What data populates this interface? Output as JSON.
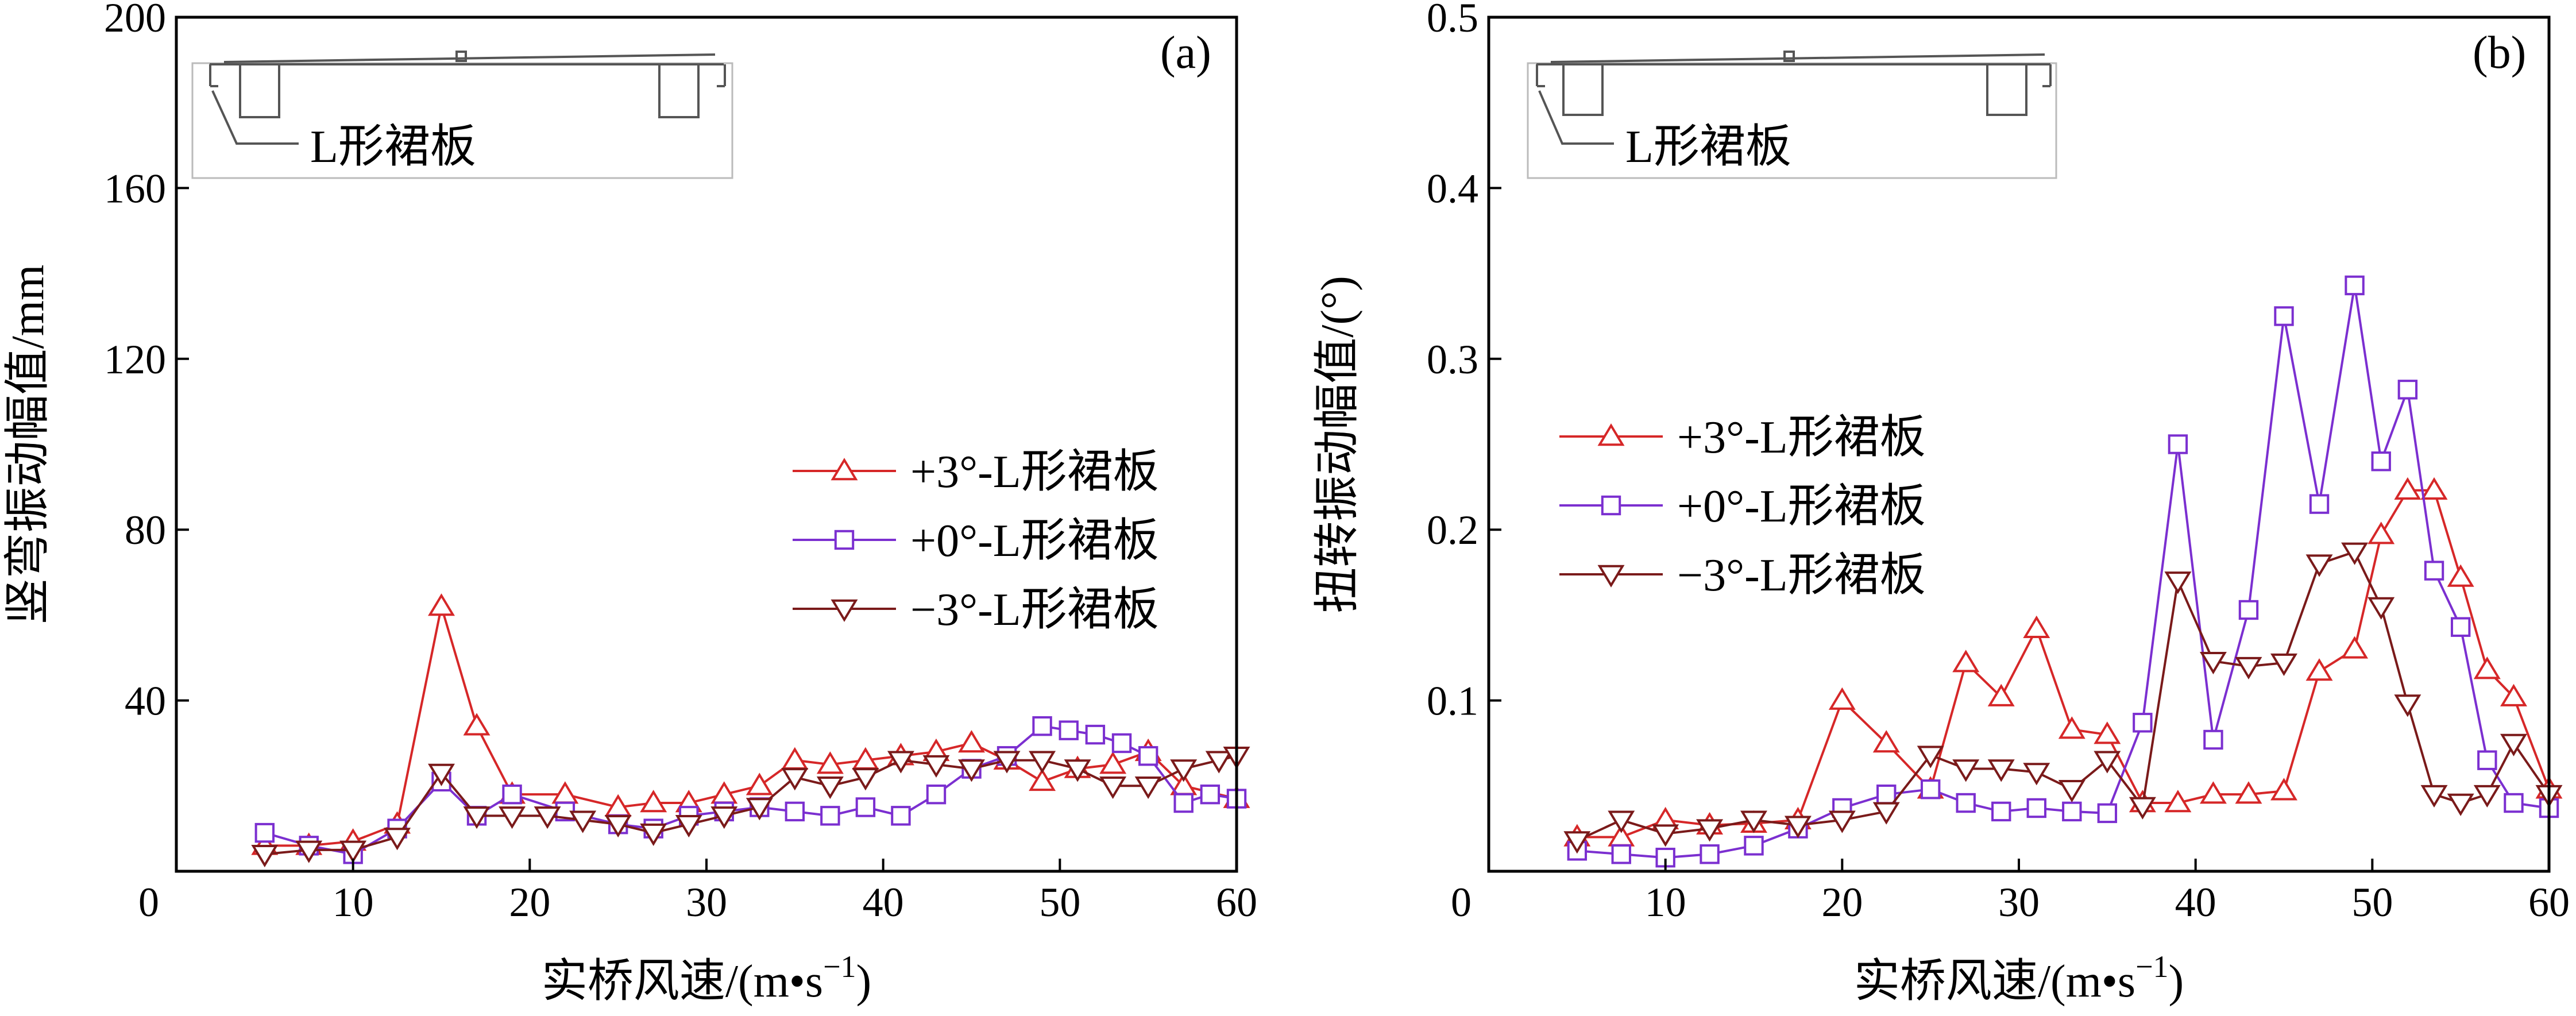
{
  "chart_data": [
    {
      "type": "line",
      "panel_label": "(a)",
      "xlabel": "实桥风速/(m•s",
      "xlabel_sup": "−1",
      "xlabel_close": ")",
      "ylabel": "竖弯振动幅值/mm",
      "xlim": [
        0,
        60
      ],
      "ylim": [
        0,
        200
      ],
      "xticks": [
        "0",
        "10",
        "20",
        "30",
        "40",
        "50",
        "60"
      ],
      "yticks": [
        "0",
        "40",
        "80",
        "120",
        "160",
        "200"
      ],
      "inset_label": "L形裙板",
      "legend_position": "right",
      "series": [
        {
          "name": "+3°-L形裙板",
          "color": "#d62728",
          "marker": "triangle-up",
          "x": [
            5,
            7.5,
            10,
            12.5,
            15,
            17,
            19,
            22,
            25,
            27,
            29,
            31,
            33,
            35,
            37,
            39,
            41,
            43,
            45,
            47,
            49,
            51,
            53,
            55,
            57,
            60
          ],
          "y": [
            6,
            6,
            7,
            11,
            62,
            34,
            18,
            18,
            15,
            16,
            16,
            18,
            20,
            26,
            25,
            26,
            27,
            28,
            30,
            26,
            21,
            24,
            25,
            28,
            20,
            17
          ]
        },
        {
          "name": "+0°-L形裙板",
          "color": "#7b2fd0",
          "marker": "square",
          "x": [
            5,
            7.5,
            10,
            12.5,
            15,
            17,
            19,
            22,
            25,
            27,
            29,
            31,
            33,
            35,
            37,
            39,
            41,
            43,
            45,
            47,
            49,
            50.5,
            52,
            53.5,
            55,
            57,
            58.5,
            60
          ],
          "y": [
            9,
            6,
            4,
            10,
            21,
            13,
            18,
            14,
            11,
            10,
            13,
            14,
            15,
            14,
            13,
            15,
            13,
            18,
            24,
            27,
            34,
            33,
            32,
            30,
            27,
            16,
            18,
            17
          ]
        },
        {
          "name": "−3°-L形裙板",
          "color": "#7a1a1a",
          "marker": "triangle-down",
          "x": [
            5,
            7.5,
            10,
            12.5,
            15,
            17,
            19,
            21,
            23,
            25,
            27,
            29,
            31,
            33,
            35,
            37,
            39,
            41,
            43,
            45,
            47,
            49,
            51,
            53,
            55,
            57,
            59,
            60
          ],
          "y": [
            4,
            5,
            5,
            8,
            23,
            13,
            13,
            13,
            12,
            11,
            9,
            11,
            13,
            15,
            22,
            20,
            22,
            26,
            25,
            24,
            26,
            26,
            24,
            20,
            20,
            24,
            26,
            27
          ]
        }
      ]
    },
    {
      "type": "line",
      "panel_label": "(b)",
      "xlabel": "实桥风速/(m•s",
      "xlabel_sup": "−1",
      "xlabel_close": ")",
      "ylabel": "扭转振动幅值/(°)",
      "xlim": [
        0,
        60
      ],
      "ylim": [
        0,
        0.5
      ],
      "xticks": [
        "0",
        "10",
        "20",
        "30",
        "40",
        "50",
        "60"
      ],
      "yticks": [
        "0",
        "0.1",
        "0.2",
        "0.3",
        "0.4",
        "0.5"
      ],
      "inset_label": "L形裙板",
      "legend_position": "left",
      "series": [
        {
          "name": "+3°-L形裙板",
          "color": "#d62728",
          "marker": "triangle-up",
          "x": [
            5,
            7.5,
            10,
            12.5,
            15,
            17.5,
            20,
            22.5,
            25,
            27,
            29,
            31,
            33,
            35,
            37,
            39,
            41,
            43,
            45,
            47,
            49,
            50.5,
            52,
            53.5,
            55,
            56.5,
            58,
            60
          ],
          "y": [
            0.02,
            0.02,
            0.03,
            0.027,
            0.028,
            0.03,
            0.1,
            0.075,
            0.048,
            0.122,
            0.102,
            0.142,
            0.083,
            0.08,
            0.04,
            0.04,
            0.045,
            0.045,
            0.047,
            0.117,
            0.13,
            0.197,
            0.223,
            0.223,
            0.172,
            0.118,
            0.102,
            0.048
          ]
        },
        {
          "name": "+0°-L形裙板",
          "color": "#7b2fd0",
          "marker": "square",
          "x": [
            5,
            7.5,
            10,
            12.5,
            15,
            17.5,
            20,
            22.5,
            25,
            27,
            29,
            31,
            33,
            35,
            37,
            39,
            41,
            43,
            45,
            47,
            49,
            50.5,
            52,
            53.5,
            55,
            56.5,
            58,
            60
          ],
          "y": [
            0.012,
            0.01,
            0.008,
            0.01,
            0.015,
            0.025,
            0.037,
            0.045,
            0.048,
            0.04,
            0.035,
            0.037,
            0.035,
            0.034,
            0.087,
            0.25,
            0.077,
            0.153,
            0.325,
            0.215,
            0.343,
            0.24,
            0.282,
            0.176,
            0.143,
            0.065,
            0.04,
            0.037
          ]
        },
        {
          "name": "−3°-L形裙板",
          "color": "#7a1a1a",
          "marker": "triangle-down",
          "x": [
            5,
            7.5,
            10,
            12.5,
            15,
            17.5,
            20,
            22.5,
            25,
            27,
            29,
            31,
            33,
            35,
            37,
            39,
            41,
            43,
            45,
            47,
            49,
            50.5,
            52,
            53.5,
            55,
            56.5,
            58,
            60
          ],
          "y": [
            0.018,
            0.03,
            0.022,
            0.025,
            0.03,
            0.027,
            0.03,
            0.035,
            0.068,
            0.06,
            0.06,
            0.058,
            0.048,
            0.065,
            0.038,
            0.17,
            0.123,
            0.12,
            0.122,
            0.18,
            0.187,
            0.155,
            0.098,
            0.045,
            0.04,
            0.045,
            0.075,
            0.045
          ]
        }
      ]
    }
  ]
}
